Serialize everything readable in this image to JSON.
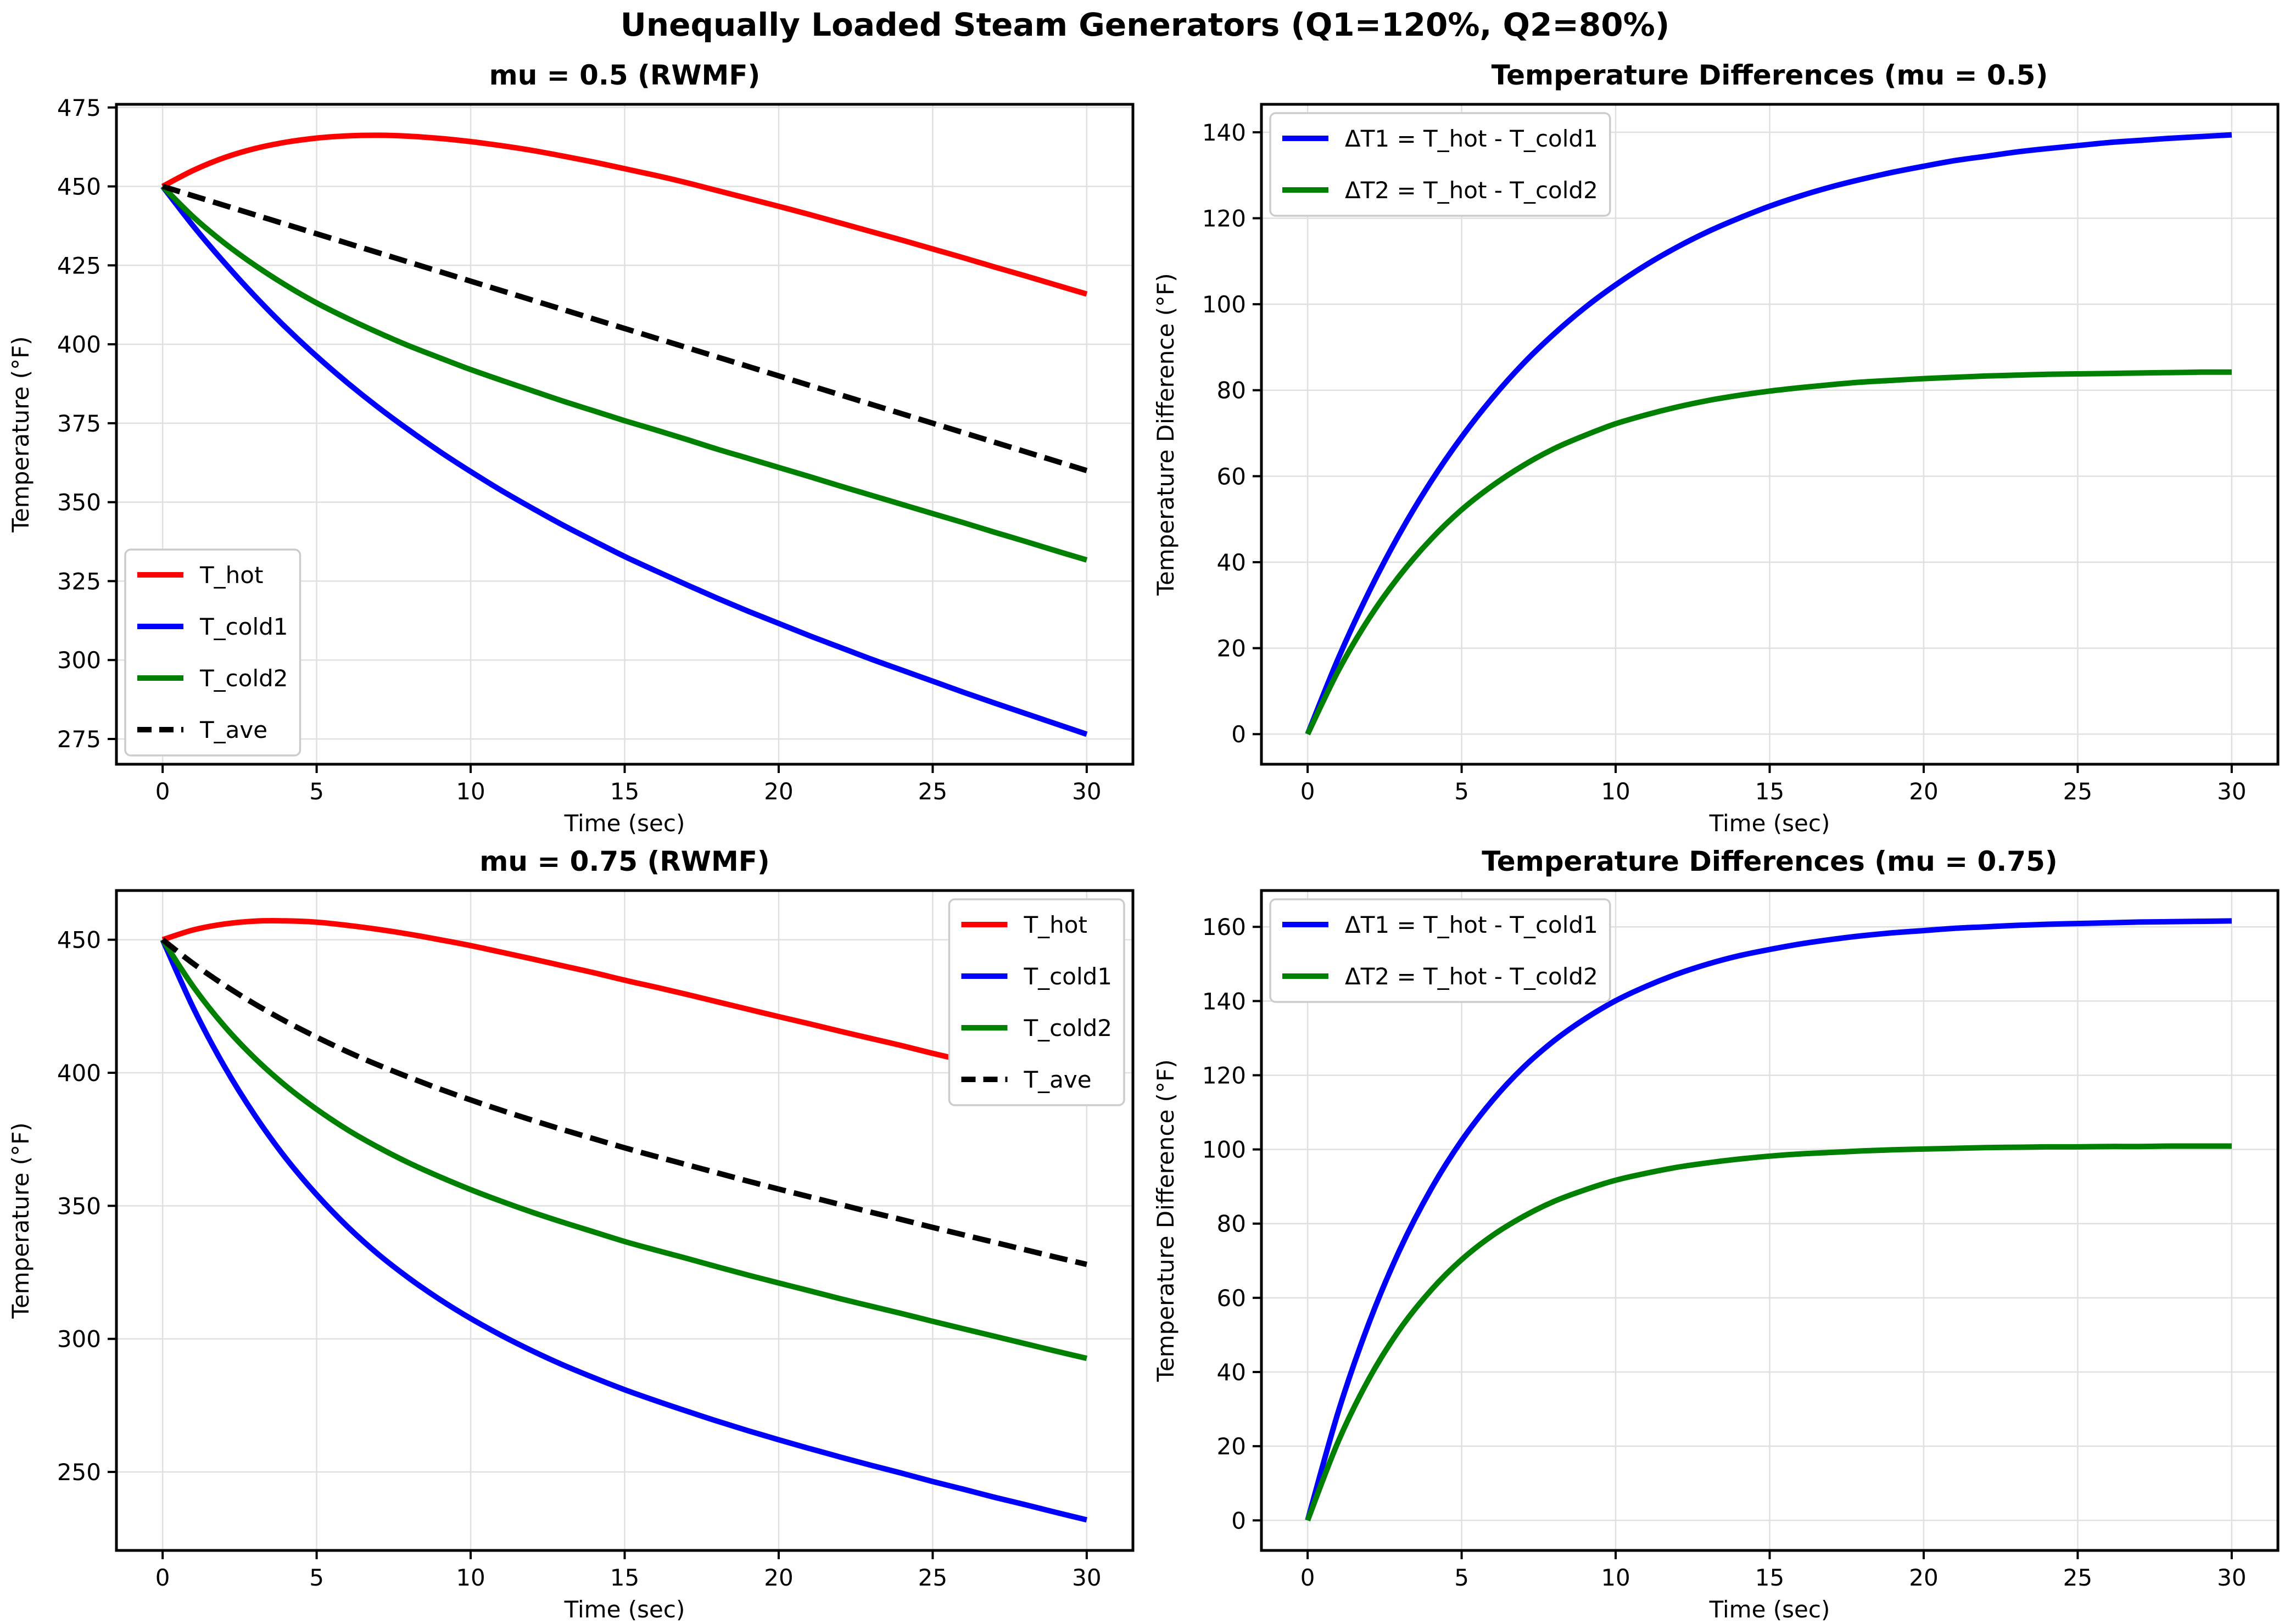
{
  "figure": {
    "suptitle": "Unequally Loaded Steam Generators (Q1=120%, Q2=80%)",
    "background": "#ffffff",
    "text_color": "#000000",
    "grid_color": "#e0e0e0",
    "spine_color": "#000000",
    "legend_edge_color": "#cccccc",
    "series_colors": {
      "red": "#ff0000",
      "blue": "#0000ff",
      "green": "#008000",
      "black": "#000000"
    }
  },
  "chart_data": [
    {
      "id": "temps-mu05",
      "type": "line",
      "title": "mu = 0.5 (RWMF)",
      "xlabel": "Time (sec)",
      "ylabel": "Temperature (°F)",
      "xlim": [
        -1.5,
        31.5
      ],
      "ylim": [
        267,
        476
      ],
      "xticks": [
        0,
        5,
        10,
        15,
        20,
        25,
        30
      ],
      "yticks": [
        275,
        300,
        325,
        350,
        375,
        400,
        425,
        450,
        475
      ],
      "grid": true,
      "legend_loc": "lower-left",
      "x": [
        0,
        1,
        2,
        3,
        4,
        5,
        6,
        7,
        8,
        9,
        10,
        11,
        12,
        13,
        14,
        15,
        16,
        17,
        18,
        19,
        20,
        21,
        22,
        23,
        24,
        25,
        26,
        27,
        28,
        29,
        30
      ],
      "series": [
        {
          "name": "T_hot",
          "color": "#ff0000",
          "dash": "solid",
          "values": [
            450,
            455.1,
            459.1,
            462,
            464,
            465.3,
            466,
            466.2,
            465.9,
            465.2,
            464.2,
            462.9,
            461.4,
            459.6,
            457.7,
            455.6,
            453.5,
            451.2,
            448.7,
            446.2,
            443.7,
            441.1,
            438.4,
            435.7,
            433,
            430.2,
            427.4,
            424.5,
            421.7,
            418.8,
            415.9
          ]
        },
        {
          "name": "T_cold1",
          "color": "#0000ff",
          "dash": "solid",
          "values": [
            450,
            437.4,
            425.9,
            415.2,
            405.3,
            396.2,
            387.8,
            380,
            372.8,
            366,
            359.7,
            353.7,
            348.1,
            342.7,
            337.7,
            332.8,
            328.3,
            323.9,
            319.6,
            315.5,
            311.6,
            307.7,
            304,
            300.3,
            296.8,
            293.3,
            289.8,
            286.4,
            283.1,
            279.8,
            276.5
          ]
        },
        {
          "name": "T_cold2",
          "color": "#008000",
          "dash": "solid",
          "values": [
            450,
            440.3,
            432.1,
            425,
            418.7,
            413.1,
            408.2,
            403.7,
            399.5,
            395.7,
            392,
            388.6,
            385.3,
            382,
            378.9,
            375.8,
            372.9,
            369.9,
            366.8,
            363.9,
            361,
            358.1,
            355.1,
            352.2,
            349.3,
            346.4,
            343.5,
            340.5,
            337.6,
            334.6,
            331.7
          ]
        },
        {
          "name": "T_ave",
          "color": "#000000",
          "dash": "dashed",
          "values": [
            450,
            447,
            444,
            441,
            438,
            435,
            432,
            429,
            426,
            423,
            420,
            417,
            414,
            411,
            408,
            405,
            402,
            399,
            396,
            393,
            390,
            387,
            384,
            381,
            378,
            375,
            372,
            369,
            366,
            363,
            360
          ]
        }
      ]
    },
    {
      "id": "diffs-mu05",
      "type": "line",
      "title": "Temperature Differences (mu = 0.5)",
      "xlabel": "Time (sec)",
      "ylabel": "Temperature Difference (°F)",
      "xlim": [
        -1.5,
        31.5
      ],
      "ylim": [
        -7,
        146.5
      ],
      "xticks": [
        0,
        5,
        10,
        15,
        20,
        25,
        30
      ],
      "yticks": [
        0,
        20,
        40,
        60,
        80,
        100,
        120,
        140
      ],
      "grid": true,
      "legend_loc": "upper-left",
      "x": [
        0,
        1,
        2,
        3,
        4,
        5,
        6,
        7,
        8,
        9,
        10,
        11,
        12,
        13,
        14,
        15,
        16,
        17,
        18,
        19,
        20,
        21,
        22,
        23,
        24,
        25,
        26,
        27,
        28,
        29,
        30
      ],
      "series": [
        {
          "name": "ΔT1 = T_hot - T_cold1",
          "color": "#0000ff",
          "dash": "solid",
          "values": [
            0,
            17.7,
            33.2,
            46.8,
            58.7,
            69.1,
            78.2,
            86.2,
            93.1,
            99.2,
            104.5,
            109.2,
            113.3,
            116.9,
            120,
            122.8,
            125.2,
            127.3,
            129.1,
            130.7,
            132.1,
            133.4,
            134.4,
            135.4,
            136.2,
            136.9,
            137.6,
            138.1,
            138.6,
            139,
            139.4
          ]
        },
        {
          "name": "ΔT2 = T_hot - T_cold2",
          "color": "#008000",
          "dash": "solid",
          "values": [
            0,
            14.8,
            27,
            37,
            45.3,
            52.2,
            57.8,
            62.5,
            66.4,
            69.5,
            72.2,
            74.3,
            76.1,
            77.6,
            78.8,
            79.8,
            80.6,
            81.3,
            81.9,
            82.3,
            82.7,
            83,
            83.3,
            83.5,
            83.7,
            83.8,
            83.9,
            84,
            84.1,
            84.2,
            84.2
          ]
        }
      ]
    },
    {
      "id": "temps-mu075",
      "type": "line",
      "title": "mu = 0.75 (RWMF)",
      "xlabel": "Time (sec)",
      "ylabel": "Temperature (°F)",
      "xlim": [
        -1.5,
        31.5
      ],
      "ylim": [
        220.5,
        468.5
      ],
      "xticks": [
        0,
        5,
        10,
        15,
        20,
        25,
        30
      ],
      "yticks": [
        250,
        300,
        350,
        400,
        450
      ],
      "grid": true,
      "legend_loc": "upper-right",
      "x": [
        0,
        1,
        2,
        3,
        4,
        5,
        6,
        7,
        8,
        9,
        10,
        11,
        12,
        13,
        14,
        15,
        16,
        17,
        18,
        19,
        20,
        21,
        22,
        23,
        24,
        25,
        26,
        27,
        28,
        29,
        30
      ],
      "series": [
        {
          "name": "T_hot",
          "color": "#ff0000",
          "dash": "solid",
          "values": [
            450,
            453.7,
            455.9,
            457,
            457.1,
            456.6,
            455.4,
            453.9,
            452.1,
            450,
            447.8,
            445.3,
            442.8,
            440.2,
            437.6,
            434.8,
            432.2,
            429.5,
            426.7,
            423.9,
            421.1,
            418.4,
            415.6,
            412.9,
            410.2,
            407.3,
            404.6,
            401.8,
            399.1,
            396.3,
            393.6
          ]
        },
        {
          "name": "T_cold1",
          "color": "#0000ff",
          "dash": "solid",
          "values": [
            450,
            424.3,
            402.5,
            383.9,
            367.9,
            354.2,
            342.2,
            331.8,
            322.8,
            314.8,
            307.7,
            301.3,
            295.5,
            290.2,
            285.4,
            280.9,
            276.8,
            272.9,
            269.1,
            265.5,
            262.1,
            258.8,
            255.6,
            252.5,
            249.5,
            246.4,
            243.5,
            240.5,
            237.7,
            234.8,
            232
          ]
        },
        {
          "name": "T_cold2",
          "color": "#008000",
          "dash": "solid",
          "values": [
            450,
            432.3,
            417.6,
            405.4,
            395.1,
            386.3,
            378.6,
            372,
            366.1,
            360.9,
            356.1,
            351.7,
            347.6,
            343.8,
            340.2,
            336.6,
            333.4,
            330.3,
            327.1,
            324,
            321,
            318.1,
            315.1,
            312.3,
            309.5,
            306.6,
            303.8,
            301,
            298.2,
            295.4,
            292.7
          ]
        },
        {
          "name": "T_ave",
          "color": "#000000",
          "dash": "dashed",
          "values": [
            450,
            441,
            433,
            425.8,
            419.3,
            413.4,
            407.9,
            402.9,
            398.3,
            393.9,
            389.8,
            385.9,
            382.2,
            378.6,
            375.2,
            371.8,
            368.6,
            365.5,
            362.4,
            359.3,
            356.3,
            353.4,
            350.5,
            347.6,
            344.8,
            341.9,
            339.1,
            336.3,
            333.5,
            330.7,
            328
          ]
        }
      ]
    },
    {
      "id": "diffs-mu075",
      "type": "line",
      "title": "Temperature Differences (mu = 0.75)",
      "xlabel": "Time (sec)",
      "ylabel": "Temperature Difference (°F)",
      "xlim": [
        -1.5,
        31.5
      ],
      "ylim": [
        -8.1,
        169.8
      ],
      "xticks": [
        0,
        5,
        10,
        15,
        20,
        25,
        30
      ],
      "yticks": [
        0,
        20,
        40,
        60,
        80,
        100,
        120,
        140,
        160
      ],
      "grid": true,
      "legend_loc": "upper-left",
      "x": [
        0,
        1,
        2,
        3,
        4,
        5,
        6,
        7,
        8,
        9,
        10,
        11,
        12,
        13,
        14,
        15,
        16,
        17,
        18,
        19,
        20,
        21,
        22,
        23,
        24,
        25,
        26,
        27,
        28,
        29,
        30
      ],
      "series": [
        {
          "name": "ΔT1 = T_hot - T_cold1",
          "color": "#0000ff",
          "dash": "solid",
          "values": [
            0,
            29.4,
            53.4,
            73.1,
            89.2,
            102.4,
            113.2,
            122.1,
            129.3,
            135.2,
            140.1,
            144,
            147.3,
            150,
            152.2,
            153.9,
            155.4,
            156.6,
            157.6,
            158.4,
            159,
            159.6,
            160,
            160.4,
            160.7,
            160.9,
            161.1,
            161.3,
            161.4,
            161.5,
            161.6
          ]
        },
        {
          "name": "ΔT2 = T_hot - T_cold2",
          "color": "#008000",
          "dash": "solid",
          "values": [
            0,
            21.4,
            38.3,
            51.6,
            62,
            70.3,
            76.8,
            81.9,
            86,
            89.1,
            91.7,
            93.6,
            95.2,
            96.4,
            97.4,
            98.2,
            98.8,
            99.2,
            99.6,
            99.9,
            100.1,
            100.3,
            100.5,
            100.6,
            100.7,
            100.7,
            100.8,
            100.8,
            100.9,
            100.9,
            100.9
          ]
        }
      ]
    }
  ]
}
